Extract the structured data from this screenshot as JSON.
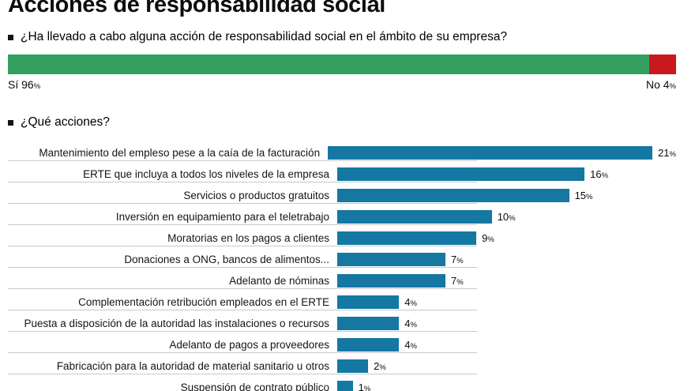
{
  "header": {
    "title": "Acciones de responsabilidad social"
  },
  "colors": {
    "yes": "#33a05f",
    "no": "#c8171d",
    "bar": "#1478a3",
    "separator": "#c9c9c9"
  },
  "chart_data": [
    {
      "type": "bar",
      "orientation": "horizontal-stacked",
      "title": "¿Ha llevado a cabo alguna acción de responsabilidad social en el ámbito de su empresa?",
      "categories": [
        "Sí",
        "No"
      ],
      "values": [
        96,
        4
      ],
      "unit": "%",
      "legend_position": "below-bar"
    },
    {
      "type": "bar",
      "orientation": "horizontal",
      "title": "¿Qué acciones?",
      "unit": "%",
      "xlim": [
        0,
        21
      ],
      "grid": false,
      "categories": [
        "Mantenimiento del empleso pese a la caía de la facturación",
        "ERTE que incluya a todos los niveles de la empresa",
        "Servicios o productos gratuitos",
        "Inversión en equipamiento para el teletrabajo",
        "Moratorias en los pagos a clientes",
        "Donaciones a ONG, bancos de alimentos...",
        "Adelanto de nóminas",
        "Complementación retribución empleados en el ERTE",
        "Puesta a disposición de la autoridad las instalaciones o recursos",
        "Adelanto de pagos a proveedores",
        "Fabricación para la autoridad de material sanitario u otros",
        "Suspensión de contrato público"
      ],
      "values": [
        21,
        16,
        15,
        10,
        9,
        7,
        7,
        4,
        4,
        4,
        2,
        1
      ]
    }
  ]
}
